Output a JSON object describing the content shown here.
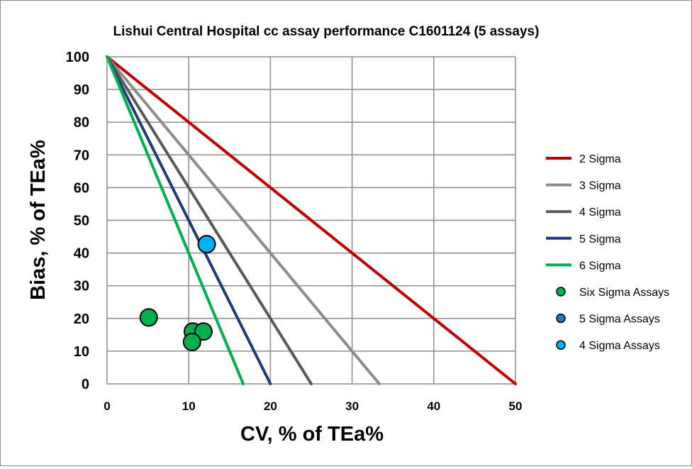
{
  "chart_data": {
    "type": "scatter",
    "title": "Lishui Central Hospital cc assay performance C1601124 (5 assays)",
    "xlabel": "CV, % of TEa%",
    "ylabel": "Bias, % of TEa%",
    "xlim": [
      0,
      50
    ],
    "ylim": [
      0,
      100
    ],
    "xticks": [
      0,
      10,
      20,
      30,
      40,
      50
    ],
    "yticks": [
      0,
      10,
      20,
      30,
      40,
      50,
      60,
      70,
      80,
      90,
      100
    ],
    "grid": true,
    "legend_position": "right",
    "lines": [
      {
        "name": "2 Sigma",
        "color": "#c00000",
        "x": [
          0,
          50
        ],
        "y": [
          100,
          0
        ]
      },
      {
        "name": "3 Sigma",
        "color": "#8c8c8c",
        "x": [
          0,
          33.33
        ],
        "y": [
          100,
          0
        ]
      },
      {
        "name": "4 Sigma",
        "color": "#595959",
        "x": [
          0,
          25
        ],
        "y": [
          100,
          0
        ]
      },
      {
        "name": "5 Sigma",
        "color": "#1f3c78",
        "x": [
          0,
          20
        ],
        "y": [
          100,
          0
        ]
      },
      {
        "name": "6 Sigma",
        "color": "#00b050",
        "x": [
          0,
          16.67
        ],
        "y": [
          100,
          0
        ]
      }
    ],
    "series": [
      {
        "name": "Six Sigma Assays",
        "color": "#00b050",
        "points": [
          [
            5.1,
            20.3
          ],
          [
            10.5,
            16.0
          ],
          [
            11.8,
            16.0
          ],
          [
            10.4,
            12.8
          ]
        ]
      },
      {
        "name": "5 Sigma Assays",
        "color": "#2e75b6",
        "points": []
      },
      {
        "name": "4 Sigma Assays",
        "color": "#00b0f0",
        "points": [
          [
            12.2,
            42.7
          ]
        ]
      }
    ]
  }
}
